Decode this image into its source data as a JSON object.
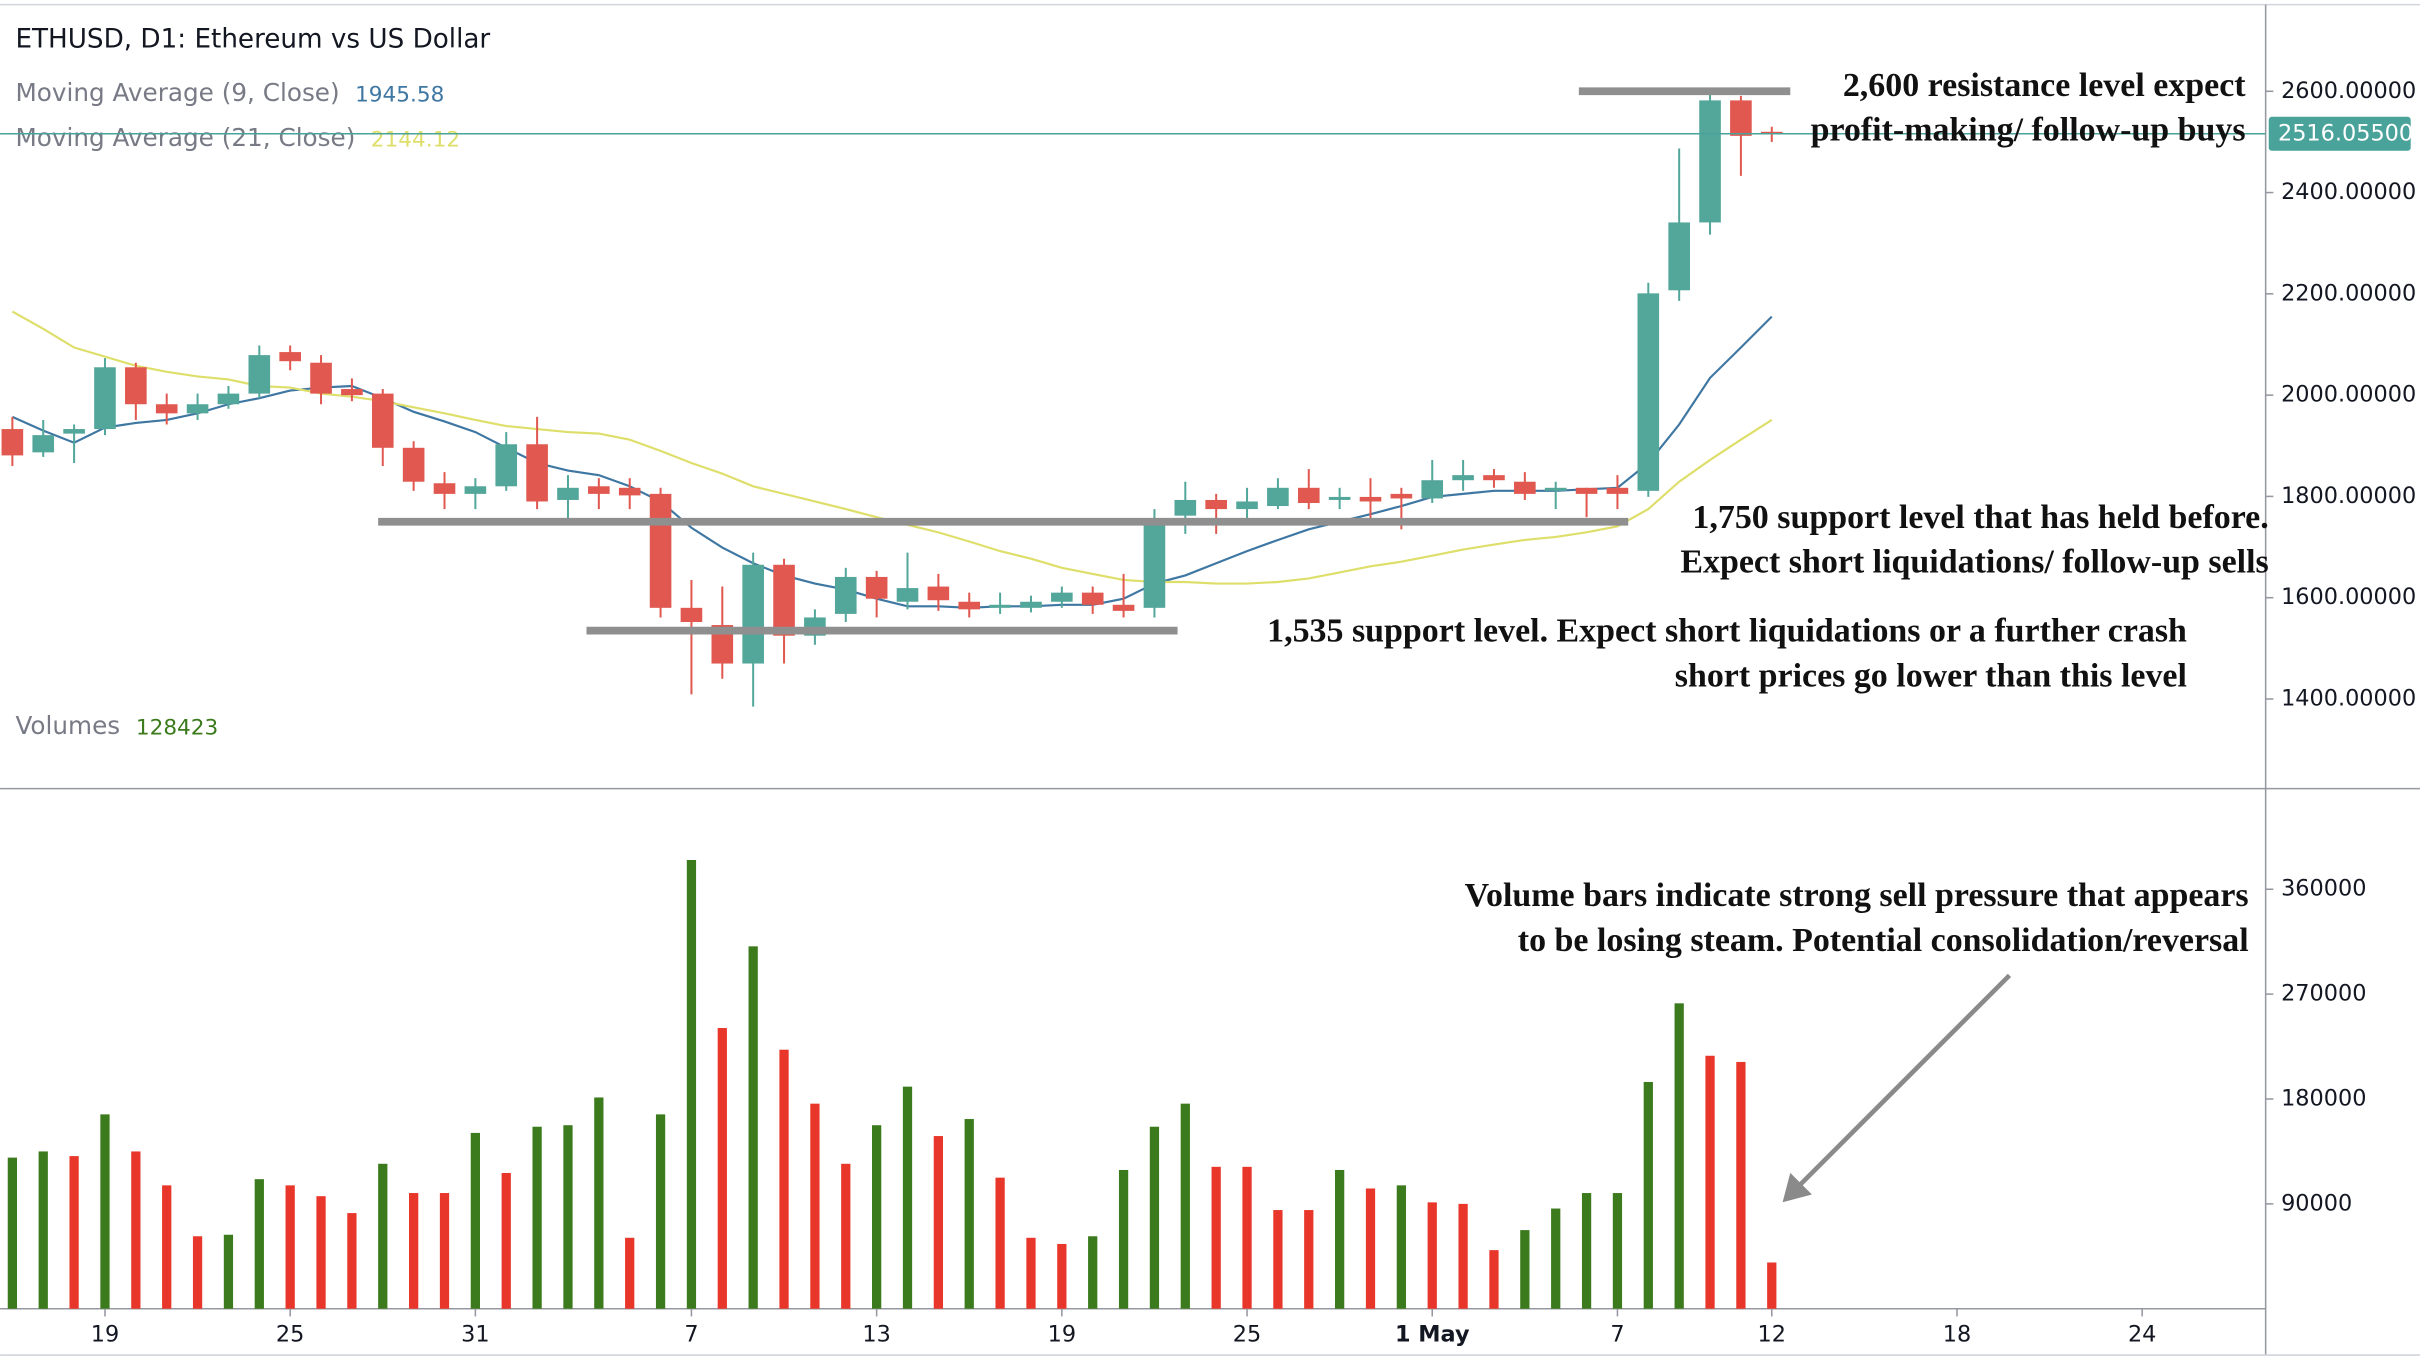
{
  "chart_data": [
    {
      "type": "candlestick",
      "title": "ETHUSD, D1: Ethereum vs US Dollar",
      "open": [
        1933,
        1887,
        1924,
        1933,
        2055,
        1982,
        1964,
        1982,
        2003,
        2085,
        2064,
        2012,
        2003,
        1896,
        1826,
        1805,
        1820,
        1903,
        1793,
        1820,
        1817,
        1805,
        1580,
        1546,
        1470,
        1665,
        1525,
        1568,
        1641,
        1592,
        1622,
        1592,
        1580,
        1580,
        1592,
        1610,
        1586,
        1580,
        1762,
        1793,
        1775,
        1781,
        1817,
        1793,
        1799,
        1805,
        1796,
        1832,
        1842,
        1829,
        1811,
        1817,
        1817,
        1811,
        2207,
        2341,
        2582,
        2520
      ],
      "high": [
        1957,
        1951,
        1942,
        2073,
        2064,
        2003,
        2003,
        2018,
        2098,
        2098,
        2079,
        2033,
        2012,
        1909,
        1848,
        1836,
        1927,
        1957,
        1842,
        1836,
        1836,
        1817,
        1635,
        1622,
        1689,
        1677,
        1577,
        1659,
        1653,
        1689,
        1647,
        1610,
        1610,
        1604,
        1622,
        1622,
        1647,
        1775,
        1829,
        1805,
        1817,
        1836,
        1854,
        1817,
        1836,
        1817,
        1872,
        1872,
        1854,
        1848,
        1829,
        1817,
        1842,
        2222,
        2487,
        2597,
        2591,
        2530
      ],
      "low": [
        1860,
        1878,
        1866,
        1921,
        1951,
        1942,
        1951,
        1973,
        1994,
        2049,
        1982,
        1988,
        1860,
        1811,
        1775,
        1775,
        1811,
        1775,
        1750,
        1775,
        1775,
        1561,
        1409,
        1440,
        1385,
        1470,
        1507,
        1552,
        1561,
        1577,
        1574,
        1561,
        1568,
        1571,
        1580,
        1568,
        1561,
        1561,
        1726,
        1726,
        1756,
        1775,
        1775,
        1775,
        1756,
        1735,
        1787,
        1811,
        1817,
        1793,
        1775,
        1759,
        1775,
        1799,
        2186,
        2317,
        2433,
        2500
      ],
      "close": [
        1881,
        1921,
        1933,
        2055,
        1982,
        1964,
        1982,
        2003,
        2079,
        2067,
        2003,
        2000,
        1896,
        1829,
        1805,
        1820,
        1903,
        1790,
        1817,
        1805,
        1802,
        1580,
        1552,
        1470,
        1665,
        1525,
        1561,
        1641,
        1598,
        1619,
        1595,
        1577,
        1586,
        1592,
        1610,
        1586,
        1574,
        1756,
        1793,
        1775,
        1790,
        1817,
        1787,
        1799,
        1790,
        1796,
        1832,
        1842,
        1832,
        1805,
        1817,
        1805,
        1805,
        2201,
        2341,
        2582,
        2512,
        2516
      ],
      "up_color": "#53a69a",
      "down_color": "#e0584f",
      "series": [
        {
          "name": "Moving Average (9, Close)",
          "legend_value": 1945.58,
          "color": "#3f77a3",
          "values": [
            1957,
            1930,
            1906,
            1936,
            1945,
            1951,
            1964,
            1982,
            1994,
            2009,
            2015,
            2018,
            1994,
            1967,
            1948,
            1927,
            1896,
            1866,
            1851,
            1842,
            1820,
            1790,
            1738,
            1699,
            1668,
            1644,
            1628,
            1616,
            1598,
            1583,
            1583,
            1580,
            1583,
            1583,
            1586,
            1586,
            1598,
            1628,
            1644,
            1668,
            1692,
            1714,
            1735,
            1750,
            1765,
            1781,
            1799,
            1805,
            1811,
            1811,
            1811,
            1814,
            1817,
            1866,
            1942,
            2034,
            2094,
            2155
          ]
        },
        {
          "name": "Moving Average (21, Close)",
          "legend_value": 2144.12,
          "color": "#dede6a",
          "values": [
            2165,
            2131,
            2094,
            2076,
            2058,
            2046,
            2037,
            2031,
            2018,
            2015,
            2003,
            1997,
            1988,
            1976,
            1964,
            1951,
            1939,
            1933,
            1927,
            1924,
            1912,
            1890,
            1866,
            1845,
            1820,
            1805,
            1790,
            1775,
            1759,
            1744,
            1729,
            1711,
            1692,
            1677,
            1659,
            1647,
            1635,
            1631,
            1631,
            1628,
            1628,
            1631,
            1638,
            1650,
            1662,
            1671,
            1683,
            1695,
            1705,
            1714,
            1720,
            1729,
            1741,
            1775,
            1829,
            1872,
            1912,
            1951
          ]
        }
      ],
      "last_price": {
        "value": 2516.055,
        "label": "2516.05500"
      },
      "last_price_color": "#4aa39b",
      "ylim": [
        1226,
        2765
      ],
      "yticks": [
        {
          "value": 1400,
          "label": "1400.00000"
        },
        {
          "value": 1600,
          "label": "1600.00000"
        },
        {
          "value": 1800,
          "label": "1800.00000"
        },
        {
          "value": 2000,
          "label": "2000.00000"
        },
        {
          "value": 2200,
          "label": "2200.00000"
        },
        {
          "value": 2400,
          "label": "2400.00000"
        },
        {
          "value": 2600,
          "label": "2600.00000"
        }
      ],
      "annotations": [
        {
          "level": 2600,
          "text": [
            "2,600 resistance level expect",
            "profit-making/ follow-up buys"
          ]
        },
        {
          "level": 1750,
          "text": [
            "1,750 support level that has held before.",
            "Expect short liquidations/ follow-up sells"
          ]
        },
        {
          "level": 1535,
          "text": [
            "1,535 support level. Expect short liquidations or a further crash",
            "short prices go lower than this level"
          ]
        }
      ]
    },
    {
      "type": "bar",
      "title": "Volumes",
      "legend_value": 128423,
      "legend_color": "#3b7b1d",
      "values": [
        129700,
        135000,
        131000,
        166800,
        135000,
        105900,
        62200,
        63500,
        111200,
        105900,
        96600,
        82100,
        124400,
        99300,
        99300,
        150900,
        116500,
        156200,
        157500,
        181300,
        60900,
        166800,
        385100,
        240900,
        311000,
        222300,
        176000,
        124400,
        157500,
        190600,
        148200,
        162800,
        112500,
        60900,
        55600,
        62200,
        119100,
        156200,
        176000,
        121800,
        121800,
        84700,
        84700,
        119100,
        103200,
        105900,
        91300,
        90000,
        50300,
        67500,
        86000,
        99300,
        99300,
        194600,
        262100,
        217100,
        211800,
        39700
      ],
      "colors": [
        "#3b7b1d",
        "#3b7b1d",
        "#e8372a",
        "#3b7b1d",
        "#e8372a",
        "#e8372a",
        "#e8372a",
        "#3b7b1d",
        "#3b7b1d",
        "#e8372a",
        "#e8372a",
        "#e8372a",
        "#3b7b1d",
        "#e8372a",
        "#e8372a",
        "#3b7b1d",
        "#e8372a",
        "#3b7b1d",
        "#3b7b1d",
        "#3b7b1d",
        "#e8372a",
        "#3b7b1d",
        "#3b7b1d",
        "#e8372a",
        "#3b7b1d",
        "#e8372a",
        "#e8372a",
        "#e8372a",
        "#3b7b1d",
        "#3b7b1d",
        "#e8372a",
        "#3b7b1d",
        "#e8372a",
        "#e8372a",
        "#e8372a",
        "#3b7b1d",
        "#3b7b1d",
        "#3b7b1d",
        "#3b7b1d",
        "#e8372a",
        "#e8372a",
        "#e8372a",
        "#e8372a",
        "#3b7b1d",
        "#e8372a",
        "#3b7b1d",
        "#e8372a",
        "#e8372a",
        "#e8372a",
        "#3b7b1d",
        "#3b7b1d",
        "#3b7b1d",
        "#3b7b1d",
        "#3b7b1d",
        "#3b7b1d",
        "#e8372a",
        "#e8372a",
        "#e8372a"
      ],
      "ylim": [
        0,
        445000
      ],
      "yticks": [
        90000,
        180000,
        270000,
        360000
      ],
      "xlim": [
        -0.4,
        73
      ],
      "xticks": [
        {
          "value": 3,
          "label": "19"
        },
        {
          "value": 9,
          "label": "25"
        },
        {
          "value": 15,
          "label": "31"
        },
        {
          "value": 22,
          "label": "7"
        },
        {
          "value": 28,
          "label": "13"
        },
        {
          "value": 34,
          "label": "19"
        },
        {
          "value": 40,
          "label": "25"
        },
        {
          "value": 46,
          "label": "1 May",
          "bold": true
        },
        {
          "value": 52,
          "label": "7"
        },
        {
          "value": 57,
          "label": "12"
        },
        {
          "value": 63,
          "label": "18"
        },
        {
          "value": 69,
          "label": "24"
        }
      ],
      "annotations": [
        {
          "text": [
            "Volume bars indicate strong sell pressure that appears",
            "to be losing steam. Potential consolidation/reversal"
          ]
        }
      ]
    }
  ]
}
